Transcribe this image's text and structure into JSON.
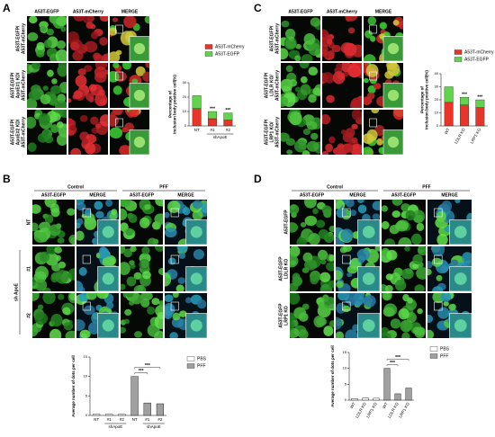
{
  "panels": [
    {
      "label": "A",
      "columns": [
        "A53T-EGFP",
        "A53T-mCherry",
        "MERGE"
      ],
      "rows": [
        [
          "A53T-EGFP/",
          "A53T-mCherry"
        ],
        [
          "A53T-EGFP/",
          "ApoE#1 KD/",
          "A53T-mCherry"
        ],
        [
          "A53T-EGFP/",
          "ApoE#2 KD/",
          "A53T-mCherry"
        ]
      ],
      "chart": {
        "type": "stacked_bar",
        "ylabel": [
          "Percentage of",
          "inclusion body positive cell(%)"
        ],
        "categories": [
          "NT",
          "#1",
          "#2"
        ],
        "group_labels": [
          "shApoE"
        ],
        "ylim": [
          0,
          30
        ],
        "yticks": [
          0,
          10,
          20,
          30
        ],
        "series": [
          {
            "name": "A53T-mCherry",
            "color": "#e8352a",
            "values": [
              12,
              5,
              4
            ]
          },
          {
            "name": "A53T-EGFP",
            "color": "#62d34c",
            "values": [
              9,
              5,
              5
            ]
          }
        ],
        "significance": [
          null,
          "***",
          "***"
        ]
      }
    },
    {
      "label": "C",
      "columns": [
        "A53T-EGFP",
        "A53T-mCherry",
        "MERGE"
      ],
      "rows": [
        [
          "A53T-EGFP/",
          "A53T-mCherry"
        ],
        [
          "A53T-EGFP/",
          "LDLR KO/",
          "A53T-mCherry"
        ],
        [
          "A53T-EGFP/",
          "LRP1 KO/",
          "A53T-mCherry"
        ]
      ],
      "chart": {
        "type": "stacked_bar",
        "ylabel": [
          "Percentage of",
          "inclusion body positive cell(%)"
        ],
        "categories": [
          "WT",
          "LDLR KO",
          "LRP1 KO"
        ],
        "ylim": [
          0,
          40
        ],
        "yticks": [
          0,
          10,
          20,
          30,
          40
        ],
        "series": [
          {
            "name": "A53T-mCherry",
            "color": "#e8352a",
            "values": [
              18,
              16,
              14
            ]
          },
          {
            "name": "A53T-EGFP",
            "color": "#62d34c",
            "values": [
              12,
              6,
              6
            ]
          }
        ],
        "significance": [
          null,
          "***",
          "***"
        ]
      }
    },
    {
      "label": "B",
      "conditions": [
        "Control",
        "PFF"
      ],
      "columns": [
        "A53T-EGFP",
        "MERGE",
        "A53T-EGFP",
        "MERGE"
      ],
      "rows": [
        [
          "NT"
        ],
        [
          "#1"
        ],
        [
          "#2"
        ]
      ],
      "row_group": "sh ApoE",
      "chart": {
        "type": "grouped_bar",
        "ylabel": [
          "Average number of dots per cell"
        ],
        "categories": [
          "NT",
          "#1",
          "#2",
          "NT",
          "#1",
          "#2"
        ],
        "group_labels": [
          "shApoE",
          "shApoE"
        ],
        "ylim": [
          0,
          15
        ],
        "yticks": [
          0,
          5,
          10,
          15
        ],
        "series": [
          {
            "name": "PBS",
            "color": "#ffffff",
            "values": [
              0.3,
              0.3,
              0.3,
              null,
              null,
              null
            ]
          },
          {
            "name": "PFF",
            "color": "#a0a0a0",
            "values": [
              null,
              null,
              null,
              10,
              3.2,
              3
            ]
          }
        ],
        "significance": [
          "***",
          "***"
        ]
      }
    },
    {
      "label": "D",
      "conditions": [
        "Control",
        "PFF"
      ],
      "columns": [
        "A53T-EGFP",
        "MERGE",
        "A53T-EGFP",
        "MERGE"
      ],
      "rows": [
        [
          "A53T-EGFP"
        ],
        [
          "A53T-EGFP",
          "LDLR KO"
        ],
        [
          "A53T-EGFP",
          "LRP1 KO"
        ]
      ],
      "chart": {
        "type": "grouped_bar",
        "ylabel": [
          "Average number of dots per cell"
        ],
        "categories": [
          "WT",
          "LDLR KO",
          "LRP1 KO",
          "WT",
          "LDLR KO",
          "LRP1 KO"
        ],
        "ylim": [
          0,
          15
        ],
        "yticks": [
          0,
          5,
          10,
          15
        ],
        "series": [
          {
            "name": "PBS",
            "color": "#ffffff",
            "values": [
              0.5,
              0.7,
              0.6,
              null,
              null,
              null
            ]
          },
          {
            "name": "PFF",
            "color": "#a0a0a0",
            "values": [
              null,
              null,
              null,
              10,
              2,
              3.8
            ]
          }
        ],
        "significance": [
          "***",
          "***"
        ]
      }
    }
  ]
}
